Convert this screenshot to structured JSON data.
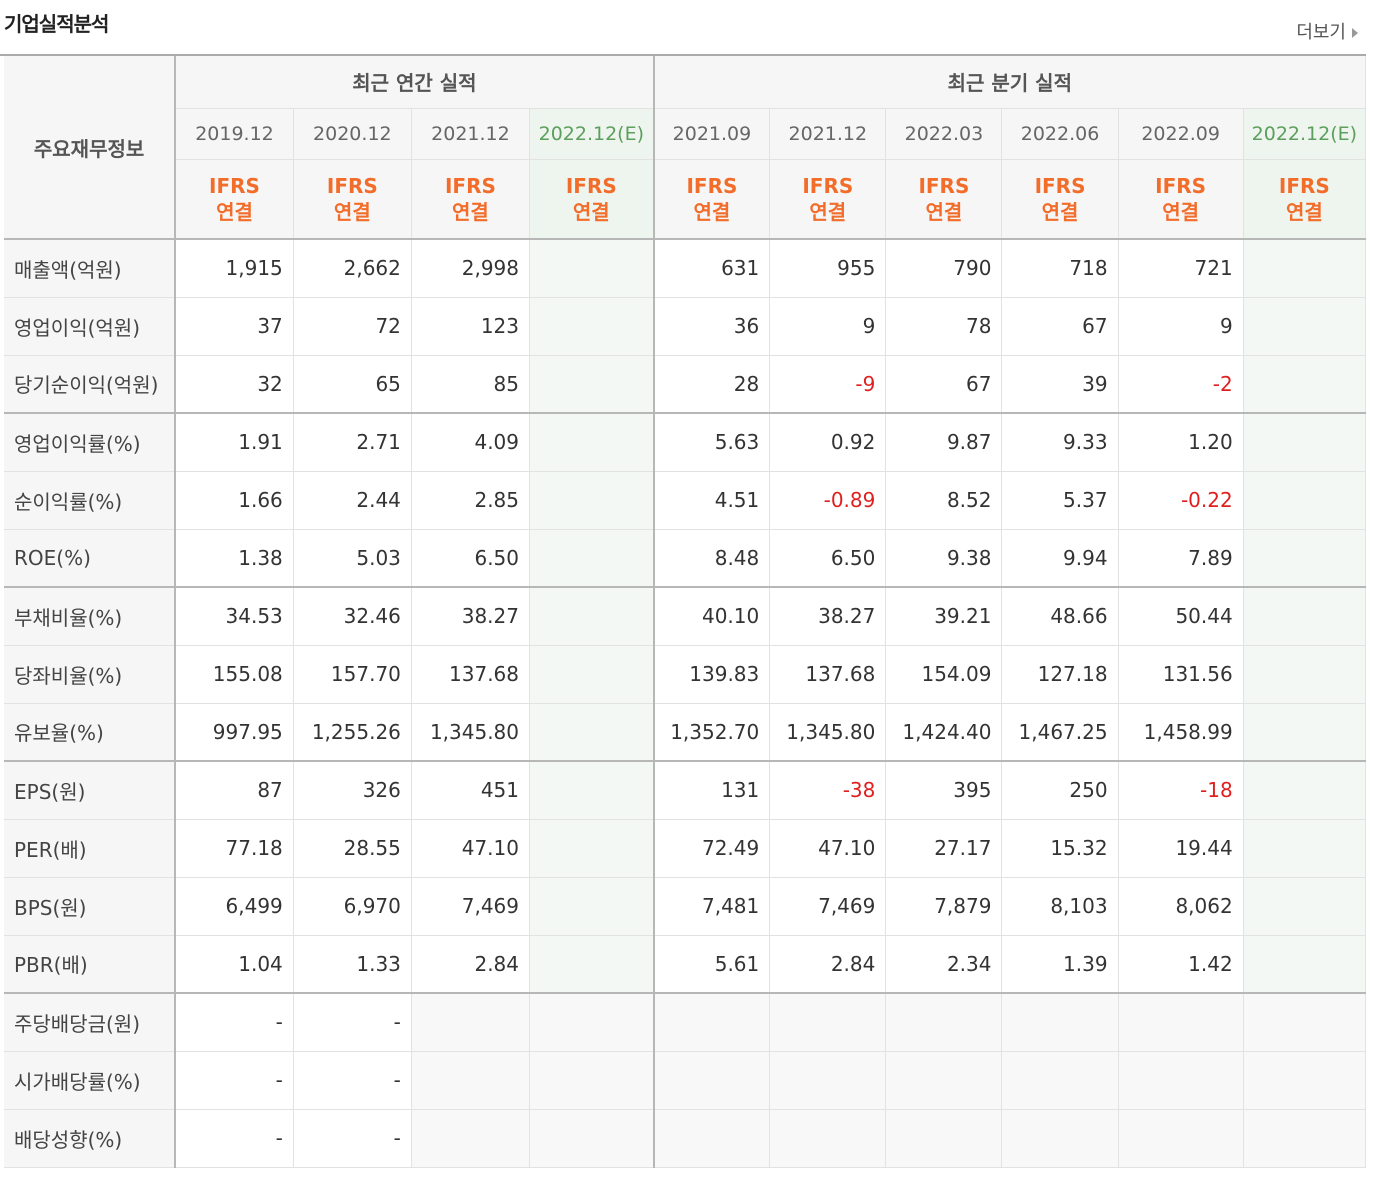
{
  "header": {
    "title": "기업실적분석",
    "more_label": "더보기"
  },
  "table": {
    "row_header": "주요재무정보",
    "annual_group": "최근 연간 실적",
    "quarter_group": "최근 분기 실적",
    "annual_periods": [
      "2019.12",
      "2020.12",
      "2021.12",
      "2022.12(E)"
    ],
    "quarter_periods": [
      "2021.09",
      "2021.12",
      "2022.03",
      "2022.06",
      "2022.09",
      "2022.12(E)"
    ],
    "basis_line1": "IFRS",
    "basis_line2": "연결",
    "rows": [
      {
        "label": "매출액(억원)",
        "annual": [
          "1,915",
          "2,662",
          "2,998"
        ],
        "quarter": [
          "631",
          "955",
          "790",
          "718",
          "721"
        ]
      },
      {
        "label": "영업이익(억원)",
        "annual": [
          "37",
          "72",
          "123"
        ],
        "quarter": [
          "36",
          "9",
          "78",
          "67",
          "9"
        ]
      },
      {
        "label": "당기순이익(억원)",
        "annual": [
          "32",
          "65",
          "85"
        ],
        "quarter": [
          "28",
          "-9",
          "67",
          "39",
          "-2"
        ]
      },
      {
        "label": "영업이익률(%)",
        "annual": [
          "1.91",
          "2.71",
          "4.09"
        ],
        "quarter": [
          "5.63",
          "0.92",
          "9.87",
          "9.33",
          "1.20"
        ]
      },
      {
        "label": "순이익률(%)",
        "annual": [
          "1.66",
          "2.44",
          "2.85"
        ],
        "quarter": [
          "4.51",
          "-0.89",
          "8.52",
          "5.37",
          "-0.22"
        ]
      },
      {
        "label": "ROE(%)",
        "annual": [
          "1.38",
          "5.03",
          "6.50"
        ],
        "quarter": [
          "8.48",
          "6.50",
          "9.38",
          "9.94",
          "7.89"
        ]
      },
      {
        "label": "부채비율(%)",
        "annual": [
          "34.53",
          "32.46",
          "38.27"
        ],
        "quarter": [
          "40.10",
          "38.27",
          "39.21",
          "48.66",
          "50.44"
        ]
      },
      {
        "label": "당좌비율(%)",
        "annual": [
          "155.08",
          "157.70",
          "137.68"
        ],
        "quarter": [
          "139.83",
          "137.68",
          "154.09",
          "127.18",
          "131.56"
        ]
      },
      {
        "label": "유보율(%)",
        "annual": [
          "997.95",
          "1,255.26",
          "1,345.80"
        ],
        "quarter": [
          "1,352.70",
          "1,345.80",
          "1,424.40",
          "1,467.25",
          "1,458.99"
        ]
      },
      {
        "label": "EPS(원)",
        "annual": [
          "87",
          "326",
          "451"
        ],
        "quarter": [
          "131",
          "-38",
          "395",
          "250",
          "-18"
        ]
      },
      {
        "label": "PER(배)",
        "annual": [
          "77.18",
          "28.55",
          "47.10"
        ],
        "quarter": [
          "72.49",
          "47.10",
          "27.17",
          "15.32",
          "19.44"
        ]
      },
      {
        "label": "BPS(원)",
        "annual": [
          "6,499",
          "6,970",
          "7,469"
        ],
        "quarter": [
          "7,481",
          "7,469",
          "7,879",
          "8,103",
          "8,062"
        ]
      },
      {
        "label": "PBR(배)",
        "annual": [
          "1.04",
          "1.33",
          "2.84"
        ],
        "quarter": [
          "5.61",
          "2.84",
          "2.34",
          "1.39",
          "1.42"
        ]
      },
      {
        "label": "주당배당금(원)",
        "annual": [
          "-",
          "-",
          ""
        ],
        "quarter": [
          "",
          "",
          "",
          "",
          ""
        ]
      },
      {
        "label": "시가배당률(%)",
        "annual": [
          "-",
          "-",
          ""
        ],
        "quarter": [
          "",
          "",
          "",
          "",
          ""
        ]
      },
      {
        "label": "배당성향(%)",
        "annual": [
          "-",
          "-",
          ""
        ],
        "quarter": [
          "",
          "",
          "",
          "",
          ""
        ]
      }
    ]
  },
  "colors": {
    "accent_orange": "#f26c2a",
    "estimate_green": "#5c9f5c",
    "negative_red": "#e02020"
  }
}
